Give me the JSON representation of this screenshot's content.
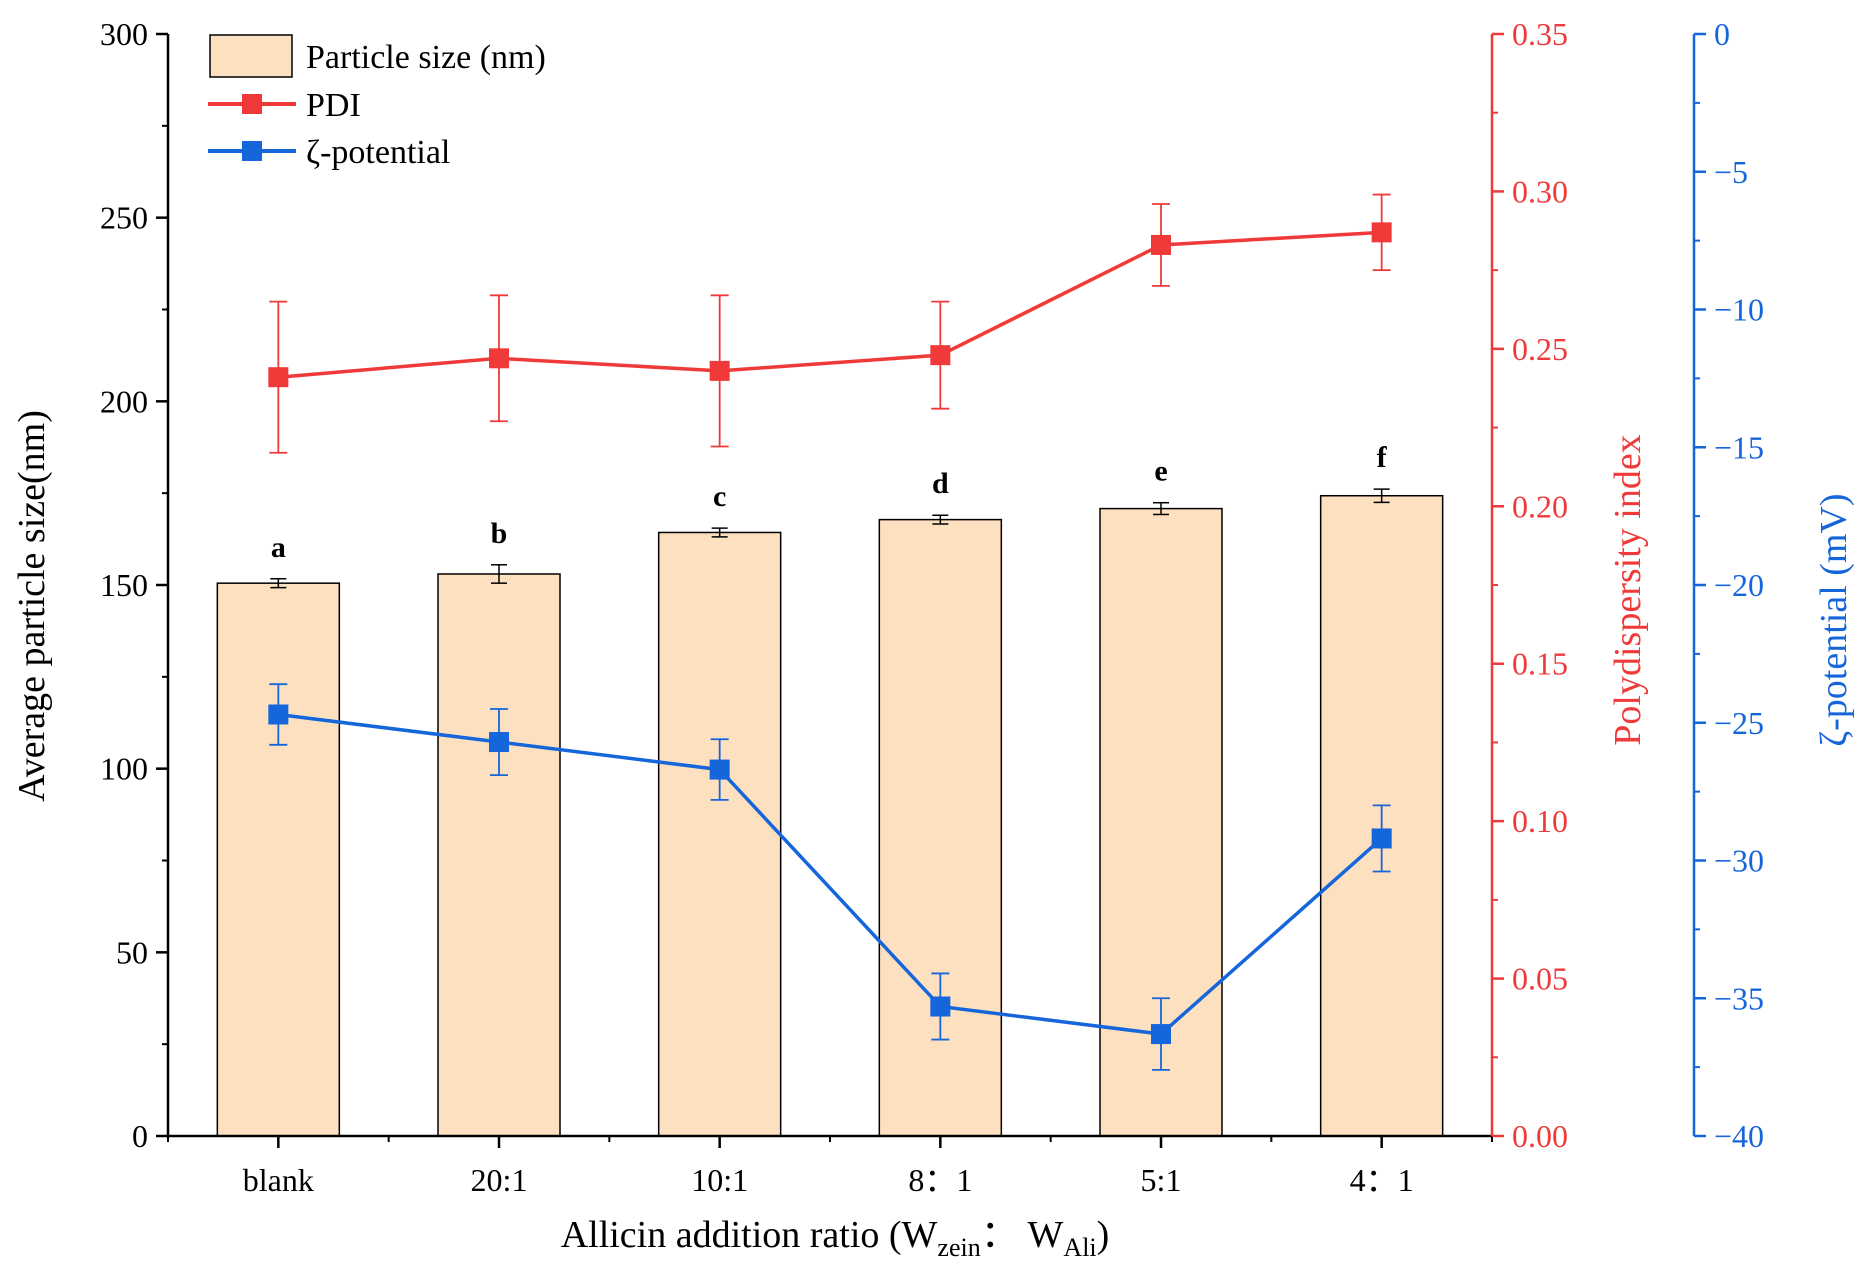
{
  "chart_data": {
    "type": "bar",
    "categories": [
      "blank",
      "20:1",
      "10:1",
      "8：1",
      "5:1",
      "4：1"
    ],
    "xlabel": {
      "main": "Allicin addition ratio (W",
      "sub1": "zein",
      "sep": "： W",
      "sub2": "Ali",
      "end": ")"
    },
    "ylabel_left": "Average particle size(nm)",
    "ylabel_right1": "Polydispersity index",
    "ylabel_right2": "ζ-potential (mV)",
    "axes": {
      "left": {
        "min": 0,
        "max": 300,
        "ticks": [
          0,
          50,
          100,
          150,
          200,
          250,
          300
        ],
        "labels": [
          "0",
          "50",
          "100",
          "150",
          "200",
          "250",
          "300"
        ]
      },
      "right1": {
        "min": 0,
        "max": 0.35,
        "ticks": [
          0,
          0.05,
          0.1,
          0.15,
          0.2,
          0.25,
          0.3,
          0.35
        ],
        "labels": [
          "0.00",
          "0.05",
          "0.10",
          "0.15",
          "0.20",
          "0.25",
          "0.30",
          "0.35"
        ]
      },
      "right2": {
        "min": -40,
        "max": 0,
        "ticks": [
          -40,
          -35,
          -30,
          -25,
          -20,
          -15,
          -10,
          -5,
          0
        ],
        "labels": [
          "−40",
          "−35",
          "−30",
          "−25",
          "−20",
          "−15",
          "−10",
          "−5",
          "0"
        ]
      }
    },
    "series": [
      {
        "name": "Particle size (nm)",
        "kind": "bar",
        "axis": "left",
        "color": "#FDE0C0",
        "values": [
          150.5,
          153,
          164.3,
          167.8,
          170.8,
          174.3
        ],
        "errors": [
          1.2,
          2.5,
          1.2,
          1.2,
          1.6,
          1.8
        ],
        "letters": [
          "a",
          "b",
          "c",
          "d",
          "e",
          "f"
        ]
      },
      {
        "name": "PDI",
        "kind": "line",
        "axis": "right1",
        "color": "#F03A3A",
        "values": [
          0.241,
          0.247,
          0.243,
          0.248,
          0.283,
          0.287
        ],
        "errors": [
          0.024,
          0.02,
          0.024,
          0.017,
          0.013,
          0.012
        ]
      },
      {
        "name": "ζ-potential",
        "kind": "line",
        "axis": "right2",
        "color": "#1565DB",
        "values": [
          -24.7,
          -25.7,
          -26.7,
          -35.3,
          -36.3,
          -29.2
        ],
        "errors": [
          1.1,
          1.2,
          1.1,
          1.2,
          1.3,
          1.2
        ]
      }
    ],
    "legend": {
      "position": "top-left",
      "items": [
        "Particle size (nm)",
        "PDI",
        "ζ-potential"
      ]
    },
    "colors": {
      "axis_left": "#000000",
      "axis_right1": "#F03A3A",
      "axis_right2": "#1565DB",
      "bar_fill": "#FDE0C0",
      "bar_stroke": "#000000"
    }
  }
}
